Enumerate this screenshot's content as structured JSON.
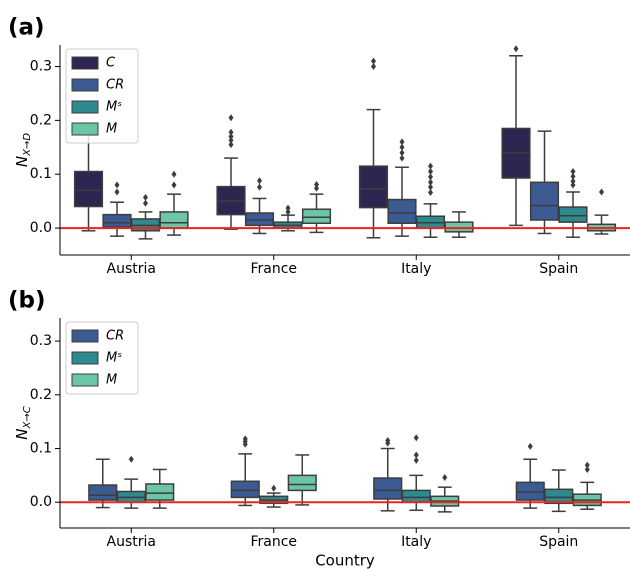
{
  "chart_data": [
    {
      "type": "box",
      "panel_label": "(a)",
      "ylabel": "N",
      "ylabel_sub": "X→D",
      "categories": [
        "Austria",
        "France",
        "Italy",
        "Spain"
      ],
      "ylim": [
        -0.05,
        0.34
      ],
      "yticks": [
        {
          "value": 0,
          "label": "0.0"
        },
        0.1,
        0.2,
        0.3
      ],
      "hline": 0,
      "hline_color": "#e8251e",
      "legend": "upper left",
      "series": [
        {
          "name": "C",
          "color": "#2e2650",
          "values": [
            {
              "whislo": -0.005,
              "q1": 0.04,
              "med": 0.07,
              "q3": 0.105,
              "whishi": 0.187,
              "fliers": []
            },
            {
              "whislo": -0.002,
              "q1": 0.025,
              "med": 0.05,
              "q3": 0.077,
              "whishi": 0.13,
              "fliers": [
                0.205,
                0.178,
                0.17,
                0.163,
                0.155
              ]
            },
            {
              "whislo": -0.018,
              "q1": 0.038,
              "med": 0.073,
              "q3": 0.115,
              "whishi": 0.22,
              "fliers": [
                0.31,
                0.3
              ]
            },
            {
              "whislo": 0.005,
              "q1": 0.093,
              "med": 0.14,
              "q3": 0.185,
              "whishi": 0.32,
              "fliers": [
                0.333
              ]
            }
          ]
        },
        {
          "name": "CR",
          "color": "#3b5b92",
          "values": [
            {
              "whislo": -0.015,
              "q1": 0.002,
              "med": 0.01,
              "q3": 0.025,
              "whishi": 0.048,
              "fliers": [
                0.08,
                0.067
              ]
            },
            {
              "whislo": -0.01,
              "q1": 0.005,
              "med": 0.015,
              "q3": 0.028,
              "whishi": 0.055,
              "fliers": [
                0.088,
                0.076
              ]
            },
            {
              "whislo": -0.015,
              "q1": 0.009,
              "med": 0.028,
              "q3": 0.053,
              "whishi": 0.113,
              "fliers": [
                0.16,
                0.15,
                0.14,
                0.13
              ]
            },
            {
              "whislo": -0.01,
              "q1": 0.015,
              "med": 0.042,
              "q3": 0.085,
              "whishi": 0.18,
              "fliers": []
            }
          ]
        },
        {
          "name": "Mˢ",
          "color": "#2e8a8f",
          "values": [
            {
              "whislo": -0.02,
              "q1": -0.005,
              "med": 0.005,
              "q3": 0.017,
              "whishi": 0.03,
              "fliers": [
                0.057,
                0.046
              ]
            },
            {
              "whislo": -0.005,
              "q1": 0.0,
              "med": 0.005,
              "q3": 0.011,
              "whishi": 0.024,
              "fliers": [
                0.037,
                0.03
              ]
            },
            {
              "whislo": -0.017,
              "q1": 0.0,
              "med": 0.01,
              "q3": 0.022,
              "whishi": 0.045,
              "fliers": [
                0.115,
                0.105,
                0.095,
                0.085,
                0.076,
                0.066
              ]
            },
            {
              "whislo": -0.017,
              "q1": 0.011,
              "med": 0.023,
              "q3": 0.039,
              "whishi": 0.067,
              "fliers": [
                0.105,
                0.096,
                0.087,
                0.08
              ]
            }
          ]
        },
        {
          "name": "M",
          "color": "#6cc5a4",
          "values": [
            {
              "whislo": -0.013,
              "q1": 0.0,
              "med": 0.01,
              "q3": 0.03,
              "whishi": 0.063,
              "fliers": [
                0.1,
                0.08
              ]
            },
            {
              "whislo": -0.008,
              "q1": 0.009,
              "med": 0.02,
              "q3": 0.035,
              "whishi": 0.063,
              "fliers": [
                0.081,
                0.074
              ]
            },
            {
              "whislo": -0.017,
              "q1": -0.007,
              "med": 0.0,
              "q3": 0.011,
              "whishi": 0.03,
              "fliers": []
            },
            {
              "whislo": -0.011,
              "q1": -0.005,
              "med": 0.0,
              "q3": 0.007,
              "whishi": 0.024,
              "fliers": [
                0.067
              ]
            }
          ]
        }
      ]
    },
    {
      "type": "box",
      "panel_label": "(b)",
      "ylabel": "N",
      "ylabel_sub": "X→C",
      "xlabel": "Country",
      "categories": [
        "Austria",
        "France",
        "Italy",
        "Spain"
      ],
      "ylim": [
        -0.048,
        0.343
      ],
      "yticks": [
        {
          "value": 0,
          "label": "0.0"
        },
        0.1,
        0.2,
        0.3
      ],
      "hline": 0,
      "hline_color": "#e8251e",
      "legend": "upper left",
      "series": [
        {
          "name": "CR",
          "color": "#3b5b92",
          "values": [
            {
              "whislo": -0.01,
              "q1": 0.004,
              "med": 0.013,
              "q3": 0.032,
              "whishi": 0.08,
              "fliers": []
            },
            {
              "whislo": -0.006,
              "q1": 0.009,
              "med": 0.022,
              "q3": 0.039,
              "whishi": 0.09,
              "fliers": [
                0.118,
                0.113,
                0.108
              ]
            },
            {
              "whislo": -0.016,
              "q1": 0.006,
              "med": 0.022,
              "q3": 0.045,
              "whishi": 0.1,
              "fliers": [
                0.115,
                0.11
              ]
            },
            {
              "whislo": -0.011,
              "q1": 0.004,
              "med": 0.019,
              "q3": 0.037,
              "whishi": 0.08,
              "fliers": [
                0.104
              ]
            }
          ]
        },
        {
          "name": "Mˢ",
          "color": "#2e8a8f",
          "values": [
            {
              "whislo": -0.011,
              "q1": 0.0,
              "med": 0.009,
              "q3": 0.02,
              "whishi": 0.043,
              "fliers": [
                0.08
              ]
            },
            {
              "whislo": -0.009,
              "q1": -0.002,
              "med": 0.004,
              "q3": 0.011,
              "whishi": 0.017,
              "fliers": [
                0.026
              ]
            },
            {
              "whislo": -0.015,
              "q1": 0.0,
              "med": 0.009,
              "q3": 0.022,
              "whishi": 0.05,
              "fliers": [
                0.12,
                0.088,
                0.078
              ]
            },
            {
              "whislo": -0.017,
              "q1": -0.002,
              "med": 0.009,
              "q3": 0.024,
              "whishi": 0.06,
              "fliers": []
            }
          ]
        },
        {
          "name": "M",
          "color": "#6cc5a4",
          "values": [
            {
              "whislo": -0.011,
              "q1": 0.004,
              "med": 0.017,
              "q3": 0.034,
              "whishi": 0.061,
              "fliers": []
            },
            {
              "whislo": -0.005,
              "q1": 0.022,
              "med": 0.033,
              "q3": 0.05,
              "whishi": 0.088,
              "fliers": []
            },
            {
              "whislo": -0.018,
              "q1": -0.007,
              "med": 0.002,
              "q3": 0.011,
              "whishi": 0.028,
              "fliers": [
                0.046
              ]
            },
            {
              "whislo": -0.013,
              "q1": -0.006,
              "med": 0.004,
              "q3": 0.015,
              "whishi": 0.037,
              "fliers": [
                0.069,
                0.061
              ]
            }
          ]
        }
      ]
    }
  ]
}
